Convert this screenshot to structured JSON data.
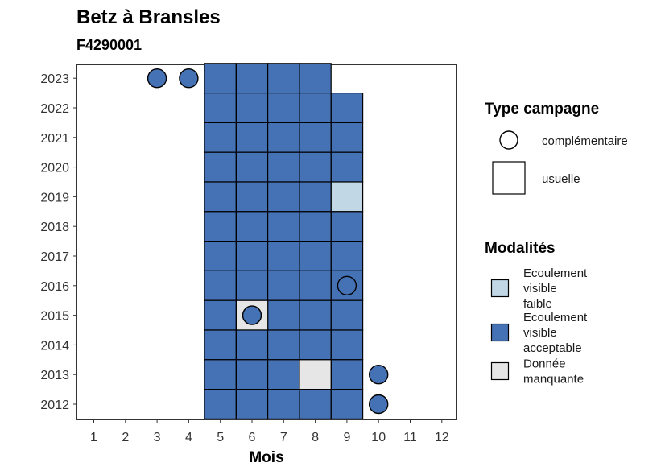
{
  "chart_data": {
    "type": "heatmap",
    "title": "Betz à Bransles",
    "subtitle": "F4290001",
    "xlabel": "Mois",
    "ylabel": "",
    "x_ticks": [
      "1",
      "2",
      "3",
      "4",
      "5",
      "6",
      "7",
      "8",
      "9",
      "10",
      "11",
      "12"
    ],
    "y_ticks": [
      "2012",
      "2013",
      "2014",
      "2015",
      "2016",
      "2017",
      "2018",
      "2019",
      "2020",
      "2021",
      "2022",
      "2023"
    ],
    "colors": {
      "faible": "#c2d7e6",
      "acceptable": "#4572b5",
      "manquante": "#e6e6e6"
    },
    "tiles": [
      {
        "year": 2023,
        "months": [
          5,
          6,
          7,
          8
        ],
        "modalite": "acceptable"
      },
      {
        "year": 2022,
        "months": [
          5,
          6,
          7,
          8,
          9
        ],
        "modalite": "acceptable"
      },
      {
        "year": 2021,
        "months": [
          5,
          6,
          7,
          8,
          9
        ],
        "modalite": "acceptable"
      },
      {
        "year": 2020,
        "months": [
          5,
          6,
          7,
          8,
          9
        ],
        "modalite": "acceptable"
      },
      {
        "year": 2019,
        "months": [
          5,
          6,
          7,
          8
        ],
        "modalite": "acceptable"
      },
      {
        "year": 2019,
        "months": [
          9
        ],
        "modalite": "faible"
      },
      {
        "year": 2018,
        "months": [
          5,
          6,
          7,
          8,
          9
        ],
        "modalite": "acceptable"
      },
      {
        "year": 2017,
        "months": [
          5,
          6,
          7,
          8,
          9
        ],
        "modalite": "acceptable"
      },
      {
        "year": 2016,
        "months": [
          5,
          6,
          7,
          8,
          9
        ],
        "modalite": "acceptable"
      },
      {
        "year": 2015,
        "months": [
          5,
          7,
          8,
          9
        ],
        "modalite": "acceptable"
      },
      {
        "year": 2015,
        "months": [
          6
        ],
        "modalite": "manquante"
      },
      {
        "year": 2014,
        "months": [
          5,
          6,
          7,
          8,
          9
        ],
        "modalite": "acceptable"
      },
      {
        "year": 2013,
        "months": [
          5,
          6,
          7,
          9
        ],
        "modalite": "acceptable"
      },
      {
        "year": 2013,
        "months": [
          8
        ],
        "modalite": "manquante"
      },
      {
        "year": 2012,
        "months": [
          5,
          6,
          7,
          8,
          9
        ],
        "modalite": "acceptable"
      }
    ],
    "circles": [
      {
        "year": 2023,
        "month": 3,
        "modalite": "acceptable"
      },
      {
        "year": 2023,
        "month": 4,
        "modalite": "acceptable"
      },
      {
        "year": 2016,
        "month": 9,
        "modalite": "acceptable"
      },
      {
        "year": 2015,
        "month": 6,
        "modalite": "acceptable"
      },
      {
        "year": 2013,
        "month": 10,
        "modalite": "acceptable"
      },
      {
        "year": 2012,
        "month": 10,
        "modalite": "acceptable"
      }
    ],
    "legend": {
      "placement": "right",
      "type_title": "Type campagne",
      "type_items": [
        {
          "shape": "circle",
          "label": "complémentaire"
        },
        {
          "shape": "square",
          "label": "usuelle"
        }
      ],
      "modalites_title": "Modalités",
      "modalites_items": [
        {
          "key": "faible",
          "lines": [
            "Ecoulement",
            "visible",
            "faible"
          ]
        },
        {
          "key": "acceptable",
          "lines": [
            "Ecoulement",
            "visible",
            "acceptable"
          ]
        },
        {
          "key": "manquante",
          "lines": [
            "Donnée",
            "manquante"
          ]
        }
      ]
    },
    "grid": false
  }
}
